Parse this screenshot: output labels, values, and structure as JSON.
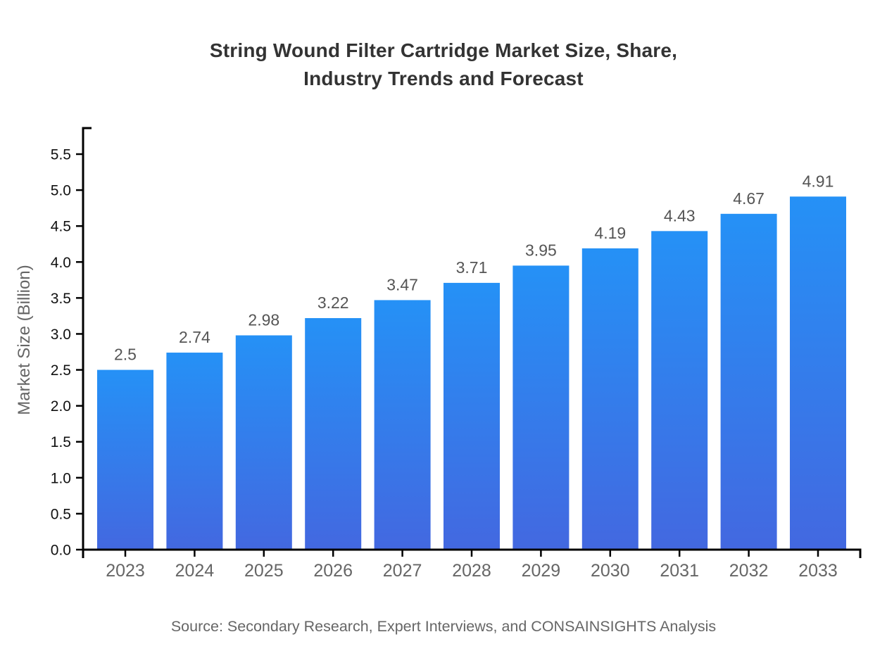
{
  "title_lines": [
    "String Wound Filter Cartridge Market Size, Share,",
    "Industry Trends and Forecast"
  ],
  "chart_data": {
    "type": "bar",
    "title": "String Wound Filter Cartridge Market Size, Share, Industry Trends and Forecast",
    "categories": [
      "2023",
      "2024",
      "2025",
      "2026",
      "2027",
      "2028",
      "2029",
      "2030",
      "2031",
      "2032",
      "2033"
    ],
    "values": [
      2.5,
      2.74,
      2.98,
      3.22,
      3.47,
      3.71,
      3.95,
      4.19,
      4.43,
      4.67,
      4.91
    ],
    "xlabel": "",
    "ylabel": "Market Size (Billion)",
    "ylim": [
      0,
      5.5
    ],
    "ytick_step": 0.5,
    "grid": false,
    "legend": "none",
    "value_labels_shown": true
  },
  "source_note": "Source: Secondary Research, Expert Interviews, and CONSAINSIGHTS Analysis",
  "colors": {
    "bar_gradient_top": "#2591f6",
    "bar_gradient_bottom": "#4368e0",
    "title": "#333333",
    "axis": "#000000",
    "y_tick_label": "#111111",
    "x_tick_label": "#666666",
    "value_label": "#555555",
    "axis_title": "#666666",
    "source": "#666666",
    "background": "#ffffff"
  }
}
